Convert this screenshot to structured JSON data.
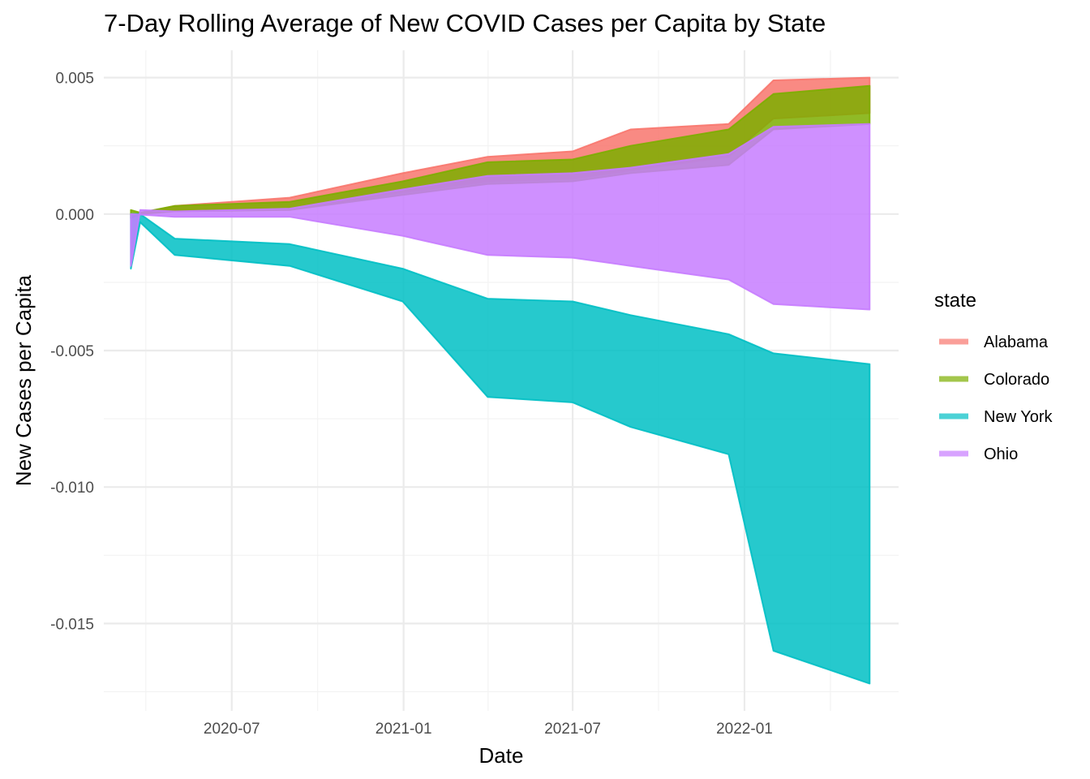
{
  "chart_data": {
    "type": "area",
    "title": "7-Day Rolling Average of New COVID Cases per Capita by State",
    "xlabel": "Date",
    "ylabel": "New Cases per Capita",
    "xlim": [
      "2020-02-15",
      "2022-06-15"
    ],
    "ylim": [
      -0.0182,
      0.006
    ],
    "x_ticks": [
      {
        "date": "2020-07-01",
        "label": "2020-07"
      },
      {
        "date": "2021-01-01",
        "label": "2021-01"
      },
      {
        "date": "2021-07-01",
        "label": "2021-07"
      },
      {
        "date": "2022-01-01",
        "label": "2022-01"
      }
    ],
    "y_ticks": [
      {
        "value": 0.005,
        "label": "0.005"
      },
      {
        "value": 0.0,
        "label": "0.000"
      },
      {
        "value": -0.005,
        "label": "-0.005"
      },
      {
        "value": -0.01,
        "label": "-0.010"
      },
      {
        "value": -0.015,
        "label": "-0.015"
      }
    ],
    "grid": true,
    "legend": {
      "title": "state",
      "position": "right"
    },
    "series": [
      {
        "name": "Alabama",
        "color": "#F8766D",
        "values": [
          [
            0.0,
            0.0
          ],
          [
            2e-05,
            1e-05
          ],
          [
            0.0003,
            0.00012
          ],
          [
            0.0006,
            0.00016
          ],
          [
            0.0015,
            0.0008
          ],
          [
            0.0021,
            0.0012
          ],
          [
            0.0023,
            0.0013
          ],
          [
            0.0031,
            0.0016
          ],
          [
            0.0033,
            0.0021
          ],
          [
            0.0049,
            0.0035
          ],
          [
            0.005,
            0.0037
          ]
        ]
      },
      {
        "name": "Colorado",
        "color": "#7CAE00",
        "values": [
          [
            0.00015,
            -0.00015
          ],
          [
            5e-05,
            0.0
          ],
          [
            0.0003,
            0.0001
          ],
          [
            0.00045,
            0.00015
          ],
          [
            0.0012,
            0.0007
          ],
          [
            0.0019,
            0.0011
          ],
          [
            0.002,
            0.0012
          ],
          [
            0.0025,
            0.0015
          ],
          [
            0.0031,
            0.0018
          ],
          [
            0.0044,
            0.0031
          ],
          [
            0.0047,
            0.0033
          ]
        ]
      },
      {
        "name": "New York",
        "color": "#00BFC4",
        "values": [
          [
            -0.002,
            0.0
          ],
          [
            -0.0003,
            0.0
          ],
          [
            -0.0015,
            -0.0009
          ],
          [
            -0.0019,
            -0.0011
          ],
          [
            -0.0032,
            -0.002
          ],
          [
            -0.0067,
            -0.0031
          ],
          [
            -0.0069,
            -0.0032
          ],
          [
            -0.0078,
            -0.0037
          ],
          [
            -0.0088,
            -0.0044
          ],
          [
            -0.016,
            -0.0051
          ],
          [
            -0.0172,
            -0.0055
          ]
        ]
      },
      {
        "name": "Ohio",
        "color": "#C77CFF",
        "values": [
          [
            -0.0019,
            0.0
          ],
          [
            0.00015,
            -2e-05
          ],
          [
            0.0001,
            -0.0001
          ],
          [
            0.0002,
            -0.0001
          ],
          [
            0.0009,
            -0.0008
          ],
          [
            0.0014,
            -0.0015
          ],
          [
            0.0015,
            -0.0016
          ],
          [
            0.0017,
            -0.0019
          ],
          [
            0.0022,
            -0.0024
          ],
          [
            0.0032,
            -0.0033
          ],
          [
            0.0033,
            -0.0035
          ]
        ]
      }
    ],
    "x": [
      "2020-03-15",
      "2020-03-25",
      "2020-05-01",
      "2020-09-01",
      "2020-12-31",
      "2021-04-01",
      "2021-07-01",
      "2021-09-01",
      "2021-12-15",
      "2022-02-01",
      "2022-05-15"
    ]
  }
}
